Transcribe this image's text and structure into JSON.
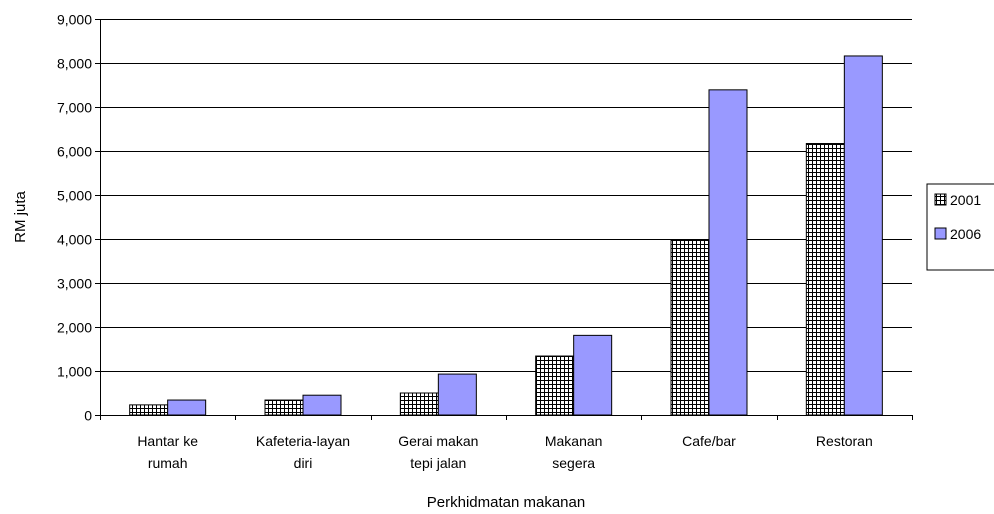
{
  "chart_data": {
    "type": "bar",
    "categories": [
      [
        "Hantar ke",
        "rumah"
      ],
      [
        "Kafeteria-layan",
        "diri"
      ],
      [
        "Gerai makan",
        "tepi jalan"
      ],
      [
        "Makanan",
        "segera"
      ],
      [
        "Cafe/bar"
      ],
      [
        "Restoran"
      ]
    ],
    "series": [
      {
        "name": "2001",
        "values": [
          230,
          340,
          500,
          1340,
          3970,
          6170
        ],
        "pattern": "crosshatch",
        "color": "#ffffff"
      },
      {
        "name": "2006",
        "values": [
          340,
          450,
          930,
          1810,
          7390,
          8160
        ],
        "pattern": "solid",
        "color": "#9999ff"
      }
    ],
    "ylim": [
      0,
      9000
    ],
    "yticks": [
      "0",
      "1,000",
      "2,000",
      "3,000",
      "4,000",
      "5,000",
      "6,000",
      "7,000",
      "8,000",
      "9,000"
    ],
    "xlabel": "Perkhidmatan makanan",
    "ylabel": "RM juta",
    "grid": true,
    "legend": "right"
  }
}
